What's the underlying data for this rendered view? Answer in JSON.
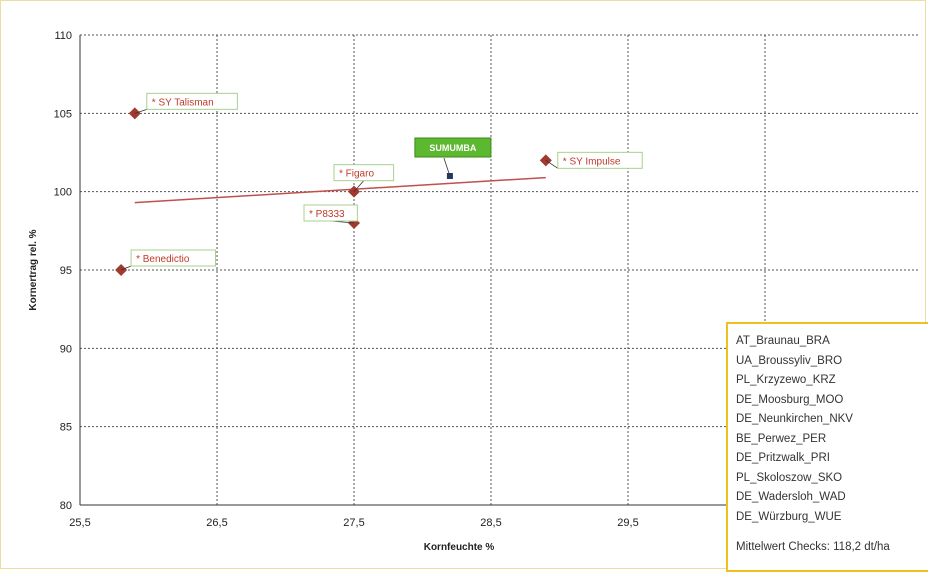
{
  "chart_data": {
    "type": "scatter",
    "xlabel": "Kornfeuchte %",
    "ylabel": "Kornertrag rel. %",
    "xlim": [
      25.5,
      30.5
    ],
    "ylim": [
      80,
      110
    ],
    "x_ticks": [
      "25,5",
      "26,5",
      "27,5",
      "28,5",
      "29,5"
    ],
    "y_ticks": [
      "80",
      "85",
      "90",
      "95",
      "100",
      "105",
      "110"
    ],
    "grid": true,
    "points": [
      {
        "label": "* SY Talisman",
        "x": 25.9,
        "y": 105
      },
      {
        "label": "* Figaro",
        "x": 27.5,
        "y": 100
      },
      {
        "label": "* P8333",
        "x": 27.5,
        "y": 98
      },
      {
        "label": "* Benedictio",
        "x": 25.8,
        "y": 95
      },
      {
        "label": "* SY Impulse",
        "x": 28.9,
        "y": 102
      }
    ],
    "highlight": {
      "label": "SUMUMBA",
      "x": 28.2,
      "y": 101
    },
    "trendline": {
      "x": [
        25.9,
        28.9
      ],
      "y": [
        99.3,
        100.9
      ]
    },
    "legend": {
      "placement": "bottom-right",
      "locations": [
        "AT_Braunau_BRA",
        "UA_Broussyliv_BRO",
        "PL_Krzyzewo_KRZ",
        "DE_Moosburg_MOO",
        "DE_Neunkirchen_NKV",
        "BE_Perwez_PER",
        "DE_Pritzwalk_PRI",
        "PL_Skoloszow_SKO",
        "DE_Wadersloh_WAD",
        "DE_Würzburg_WUE"
      ],
      "note": "Mittelwert Checks: 118,2 dt/ha"
    },
    "colors": {
      "marker": "#a0392f",
      "trendline": "#c0504d",
      "label_text": "#c0392b",
      "label_border": "#a9d18e",
      "highlight_bg": "#5cb82e",
      "legend_border": "#f0c020",
      "highlight_marker": "#1f3864"
    }
  }
}
